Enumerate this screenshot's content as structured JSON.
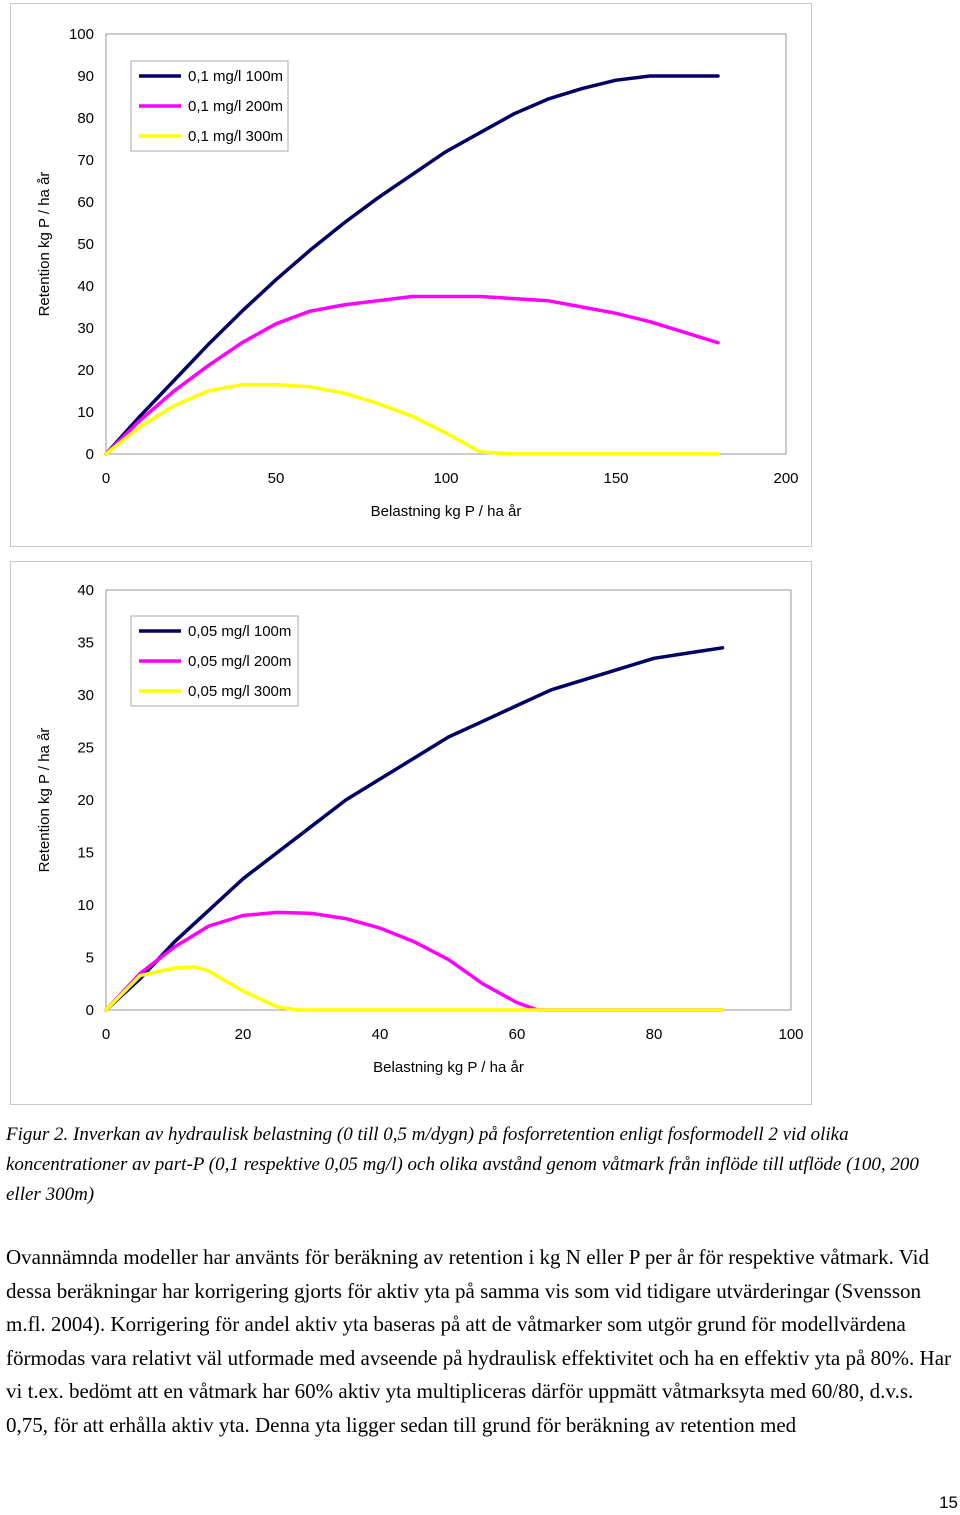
{
  "chart_data": [
    {
      "type": "line",
      "title": "",
      "xlabel": "Belastning kg P / ha år",
      "ylabel": "Retention kg P / ha år",
      "xlim": [
        0,
        200
      ],
      "ylim": [
        0,
        100
      ],
      "xticks": [
        "0",
        "50",
        "100",
        "150",
        "200"
      ],
      "yticks": [
        "0",
        "10",
        "20",
        "30",
        "40",
        "50",
        "60",
        "70",
        "80",
        "90",
        "100"
      ],
      "grid": false,
      "legend_position": "top-left",
      "series": [
        {
          "name": "0,1 mg/l 100m",
          "color": "#000066",
          "x": [
            0,
            10,
            20,
            30,
            40,
            50,
            60,
            70,
            80,
            90,
            100,
            110,
            120,
            130,
            140,
            150,
            160,
            170,
            180
          ],
          "y": [
            0,
            9,
            17.5,
            26,
            34,
            41.5,
            48.5,
            55,
            61,
            66.5,
            72,
            76.5,
            81,
            84.5,
            87,
            89,
            90,
            90,
            90
          ]
        },
        {
          "name": "0,1 mg/l 200m",
          "color": "#FF00FF",
          "x": [
            0,
            10,
            20,
            30,
            40,
            50,
            60,
            70,
            80,
            90,
            100,
            110,
            120,
            130,
            140,
            150,
            160,
            170,
            180
          ],
          "y": [
            0,
            8,
            15,
            21,
            26.5,
            31,
            34,
            35.5,
            36.5,
            37.5,
            37.5,
            37.5,
            37,
            36.5,
            35,
            33.5,
            31.5,
            29,
            26.5
          ]
        },
        {
          "name": "0,1 mg/l 300m",
          "color": "#FFFF00",
          "x": [
            0,
            10,
            20,
            30,
            40,
            50,
            60,
            70,
            80,
            90,
            100,
            110,
            120,
            130,
            140,
            150,
            160,
            170,
            180
          ],
          "y": [
            0,
            6.5,
            11.5,
            15,
            16.5,
            16.5,
            16,
            14.5,
            12,
            9,
            5,
            0.5,
            0,
            0,
            0,
            0,
            0,
            0,
            0
          ]
        }
      ]
    },
    {
      "type": "line",
      "title": "",
      "xlabel": "Belastning kg P / ha år",
      "ylabel": "Retention kg P / ha år",
      "xlim": [
        0,
        100
      ],
      "ylim": [
        0,
        40
      ],
      "xticks": [
        "0",
        "20",
        "40",
        "60",
        "80",
        "100"
      ],
      "yticks": [
        "0",
        "5",
        "10",
        "15",
        "20",
        "25",
        "30",
        "35",
        "40"
      ],
      "grid": false,
      "legend_position": "top-left",
      "series": [
        {
          "name": "0,05 mg/l 100m",
          "color": "#000066",
          "x": [
            0,
            5,
            10,
            15,
            20,
            25,
            30,
            35,
            40,
            45,
            50,
            55,
            60,
            65,
            70,
            75,
            80,
            85,
            90
          ],
          "y": [
            0,
            3,
            6.5,
            9.5,
            12.5,
            15,
            17.5,
            20,
            22,
            24,
            26,
            27.5,
            29,
            30.5,
            31.5,
            32.5,
            33.5,
            34,
            34.5
          ]
        },
        {
          "name": "0,05 mg/l 200m",
          "color": "#FF00FF",
          "x": [
            0,
            5,
            10,
            15,
            20,
            25,
            30,
            35,
            40,
            45,
            50,
            55,
            60,
            63,
            65,
            70,
            80,
            90
          ],
          "y": [
            0,
            3.5,
            6,
            8,
            9,
            9.3,
            9.2,
            8.7,
            7.8,
            6.5,
            4.8,
            2.5,
            0.7,
            0,
            0,
            0,
            0,
            0
          ]
        },
        {
          "name": "0,05 mg/l 300m",
          "color": "#FFFF00",
          "x": [
            0,
            5,
            10,
            13,
            15,
            20,
            25,
            28,
            30,
            40,
            50,
            60,
            70,
            80,
            90
          ],
          "y": [
            0,
            3.3,
            4,
            4.1,
            3.7,
            1.8,
            0.3,
            0,
            0,
            0,
            0,
            0,
            0,
            0,
            0
          ]
        }
      ]
    }
  ],
  "caption": {
    "label": "Figur 2.",
    "text": "Inverkan av hydraulisk belastning (0 till 0,5 m/dygn) på fosforretention enligt fosformodell 2 vid olika koncentrationer av part-P (0,1 respektive 0,05 mg/l) och olika avstånd genom våtmark från inflöde till utflöde (100, 200 eller 300m)"
  },
  "body_text": "Ovannämnda modeller har använts för beräkning av retention i kg N eller P per år för respektive våtmark. Vid dessa beräkningar har korrigering gjorts för aktiv yta på samma vis som vid tidigare utvärderingar (Svensson m.fl. 2004). Korrigering för andel aktiv yta baseras på att de våtmarker som utgör grund för modellvärdena förmodas vara relativt väl utformade med avseende på hydraulisk effektivitet och ha en effektiv yta på 80%. Har vi t.ex. bedömt att en våtmark har 60% aktiv yta multipliceras därför uppmätt våtmarksyta med 60/80, d.v.s. 0,75, för att erhålla aktiv yta. Denna yta ligger sedan till grund för beräkning av retention med",
  "page_number": "15"
}
